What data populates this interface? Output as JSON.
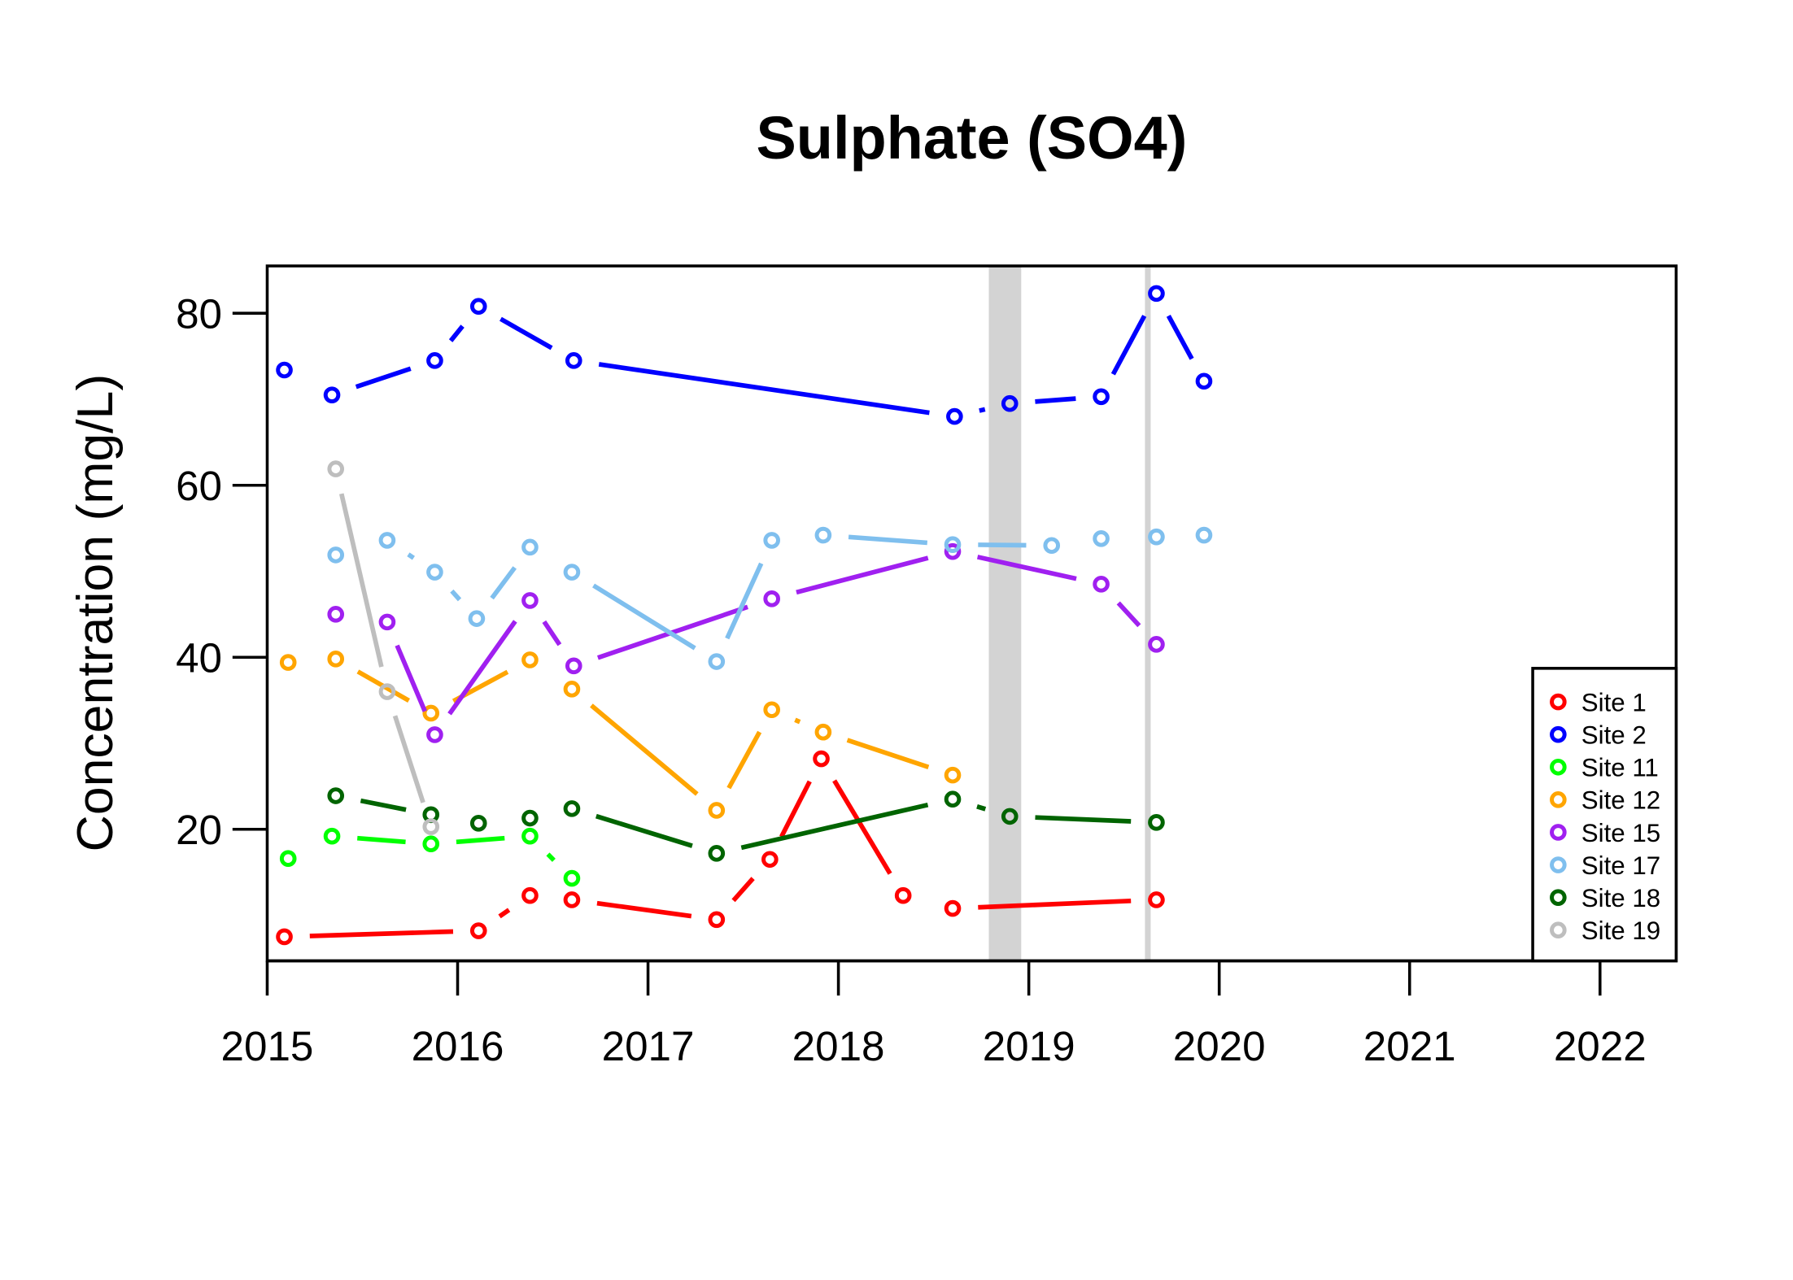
{
  "chart_data": {
    "type": "line",
    "title": "Sulphate (SO4)",
    "xlabel": "",
    "ylabel": "Concentration (mg/L)",
    "xlim": [
      2015,
      2022.4
    ],
    "ylim": [
      4.7,
      85.5
    ],
    "x_ticks": [
      "2015",
      "2016",
      "2017",
      "2018",
      "2019",
      "2020",
      "2021",
      "2022"
    ],
    "y_ticks": [
      "20",
      "40",
      "60",
      "80"
    ],
    "grid": false,
    "legend_position": "bottom-right",
    "shaded_periods": [
      [
        2018.79,
        2018.96
      ],
      [
        2019.61,
        2019.64
      ]
    ],
    "shade_color": "#d3d3d3",
    "series": [
      {
        "name": "Site 1",
        "color": "#ff0000",
        "x": [
          2015.09,
          2016.11,
          2016.38,
          2016.6,
          2017.36,
          2017.64,
          2017.91,
          2018.34,
          2018.6,
          2019.67
        ],
        "y": [
          7.5,
          8.2,
          12.3,
          11.8,
          9.5,
          16.5,
          28.2,
          12.3,
          10.8,
          11.8
        ]
      },
      {
        "name": "Site 2",
        "color": "#0000ff",
        "x": [
          2015.09,
          2015.34,
          2015.88,
          2016.11,
          2016.61,
          2018.61,
          2018.9,
          2019.38,
          2019.67,
          2019.92
        ],
        "y": [
          73.4,
          70.5,
          74.5,
          80.8,
          74.5,
          68.0,
          69.5,
          70.3,
          82.3,
          72.1
        ]
      },
      {
        "name": "Site 11",
        "color": "#00ff00",
        "x": [
          2015.11,
          2015.34,
          2015.86,
          2016.38,
          2016.6
        ],
        "y": [
          16.6,
          19.2,
          18.3,
          19.2,
          14.3
        ]
      },
      {
        "name": "Site 12",
        "color": "#ffa500",
        "x": [
          2015.11,
          2015.36,
          2015.86,
          2016.38,
          2016.6,
          2017.36,
          2017.65,
          2017.92,
          2018.6
        ],
        "y": [
          39.4,
          39.8,
          33.5,
          39.7,
          36.3,
          22.2,
          33.9,
          31.3,
          26.3
        ]
      },
      {
        "name": "Site 15",
        "color": "#a020f0",
        "x": [
          2015.36,
          2015.63,
          2015.88,
          2016.38,
          2016.61,
          2017.65,
          2018.6,
          2019.38,
          2019.67
        ],
        "y": [
          45.0,
          44.1,
          31.0,
          46.6,
          39.0,
          46.8,
          52.3,
          48.5,
          41.5
        ]
      },
      {
        "name": "Site 17",
        "color": "#7fbfee",
        "x": [
          2015.36,
          2015.63,
          2015.88,
          2016.1,
          2016.38,
          2016.6,
          2017.36,
          2017.65,
          2017.92,
          2018.6,
          2019.12,
          2019.38,
          2019.67,
          2019.92
        ],
        "y": [
          51.9,
          53.6,
          49.9,
          44.5,
          52.8,
          49.9,
          39.5,
          53.6,
          54.2,
          53.1,
          53.0,
          53.8,
          54.0,
          54.2
        ]
      },
      {
        "name": "Site 18",
        "color": "#006400",
        "x": [
          2015.36,
          2015.86,
          2016.11,
          2016.38,
          2016.6,
          2017.36,
          2018.6,
          2018.9,
          2019.67
        ],
        "y": [
          23.9,
          21.7,
          20.7,
          21.3,
          22.4,
          17.2,
          23.5,
          21.5,
          20.8
        ]
      },
      {
        "name": "Site 19",
        "color": "#bebebe",
        "x": [
          2015.36,
          2015.63,
          2015.86
        ],
        "y": [
          61.9,
          36.0,
          20.3
        ]
      }
    ]
  }
}
